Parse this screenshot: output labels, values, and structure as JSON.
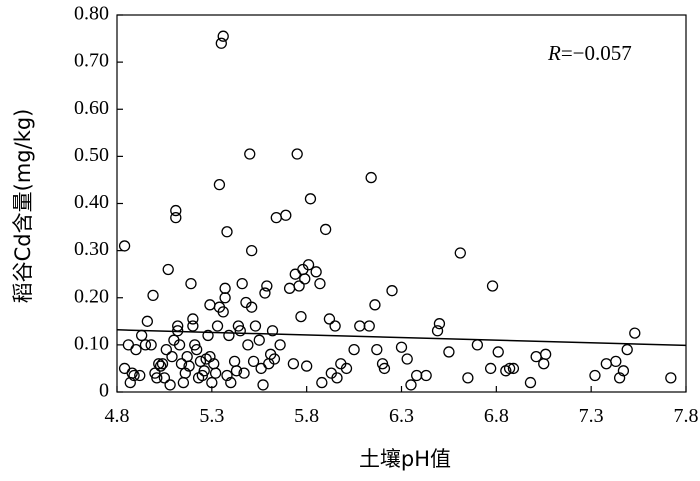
{
  "chart_data": {
    "type": "scatter",
    "xlabel": "土壤pH值",
    "ylabel": "稻谷Cd含量(mg/kg)",
    "xlim": [
      4.8,
      7.8
    ],
    "ylim": [
      0,
      0.8
    ],
    "x_ticks": [
      4.8,
      5.3,
      5.8,
      6.3,
      6.8,
      7.3,
      7.8
    ],
    "x_tick_labels": [
      "4.8",
      "5.3",
      "5.8",
      "6.3",
      "6.8",
      "7.3",
      "7.8"
    ],
    "y_ticks": [
      0,
      0.1,
      0.2,
      0.3,
      0.4,
      0.5,
      0.6,
      0.7,
      0.8
    ],
    "y_tick_labels": [
      "0",
      "0.10",
      "0.20",
      "0.30",
      "0.40",
      "0.50",
      "0.60",
      "0.70",
      "0.80"
    ],
    "grid": false,
    "annotation": {
      "prefix": "R",
      "text": "=−0.057"
    },
    "trendline": {
      "x": [
        4.8,
        7.8
      ],
      "y": [
        0.132,
        0.099
      ]
    },
    "marker": "open-circle",
    "points": [
      [
        4.84,
        0.05
      ],
      [
        4.84,
        0.31
      ],
      [
        4.86,
        0.1
      ],
      [
        4.87,
        0.02
      ],
      [
        4.88,
        0.04
      ],
      [
        4.89,
        0.035
      ],
      [
        4.9,
        0.09
      ],
      [
        4.92,
        0.035
      ],
      [
        4.93,
        0.12
      ],
      [
        4.95,
        0.1
      ],
      [
        4.96,
        0.15
      ],
      [
        4.98,
        0.1
      ],
      [
        4.99,
        0.205
      ],
      [
        5.0,
        0.04
      ],
      [
        5.01,
        0.03
      ],
      [
        5.02,
        0.06
      ],
      [
        5.03,
        0.055
      ],
      [
        5.04,
        0.06
      ],
      [
        5.05,
        0.03
      ],
      [
        5.06,
        0.09
      ],
      [
        5.07,
        0.26
      ],
      [
        5.08,
        0.015
      ],
      [
        5.09,
        0.075
      ],
      [
        5.1,
        0.11
      ],
      [
        5.11,
        0.37
      ],
      [
        5.11,
        0.385
      ],
      [
        5.12,
        0.13
      ],
      [
        5.12,
        0.14
      ],
      [
        5.13,
        0.1
      ],
      [
        5.14,
        0.06
      ],
      [
        5.15,
        0.02
      ],
      [
        5.16,
        0.04
      ],
      [
        5.17,
        0.075
      ],
      [
        5.18,
        0.055
      ],
      [
        5.19,
        0.23
      ],
      [
        5.2,
        0.14
      ],
      [
        5.2,
        0.155
      ],
      [
        5.21,
        0.1
      ],
      [
        5.22,
        0.09
      ],
      [
        5.23,
        0.03
      ],
      [
        5.24,
        0.065
      ],
      [
        5.25,
        0.035
      ],
      [
        5.26,
        0.045
      ],
      [
        5.27,
        0.07
      ],
      [
        5.28,
        0.12
      ],
      [
        5.29,
        0.075
      ],
      [
        5.29,
        0.185
      ],
      [
        5.3,
        0.02
      ],
      [
        5.31,
        0.06
      ],
      [
        5.32,
        0.04
      ],
      [
        5.33,
        0.14
      ],
      [
        5.34,
        0.44
      ],
      [
        5.34,
        0.18
      ],
      [
        5.35,
        0.74
      ],
      [
        5.36,
        0.755
      ],
      [
        5.36,
        0.17
      ],
      [
        5.37,
        0.2
      ],
      [
        5.37,
        0.22
      ],
      [
        5.38,
        0.34
      ],
      [
        5.38,
        0.035
      ],
      [
        5.39,
        0.12
      ],
      [
        5.4,
        0.02
      ],
      [
        5.42,
        0.065
      ],
      [
        5.43,
        0.045
      ],
      [
        5.44,
        0.14
      ],
      [
        5.45,
        0.13
      ],
      [
        5.46,
        0.23
      ],
      [
        5.47,
        0.04
      ],
      [
        5.48,
        0.19
      ],
      [
        5.49,
        0.1
      ],
      [
        5.5,
        0.505
      ],
      [
        5.51,
        0.3
      ],
      [
        5.51,
        0.18
      ],
      [
        5.52,
        0.065
      ],
      [
        5.53,
        0.14
      ],
      [
        5.55,
        0.11
      ],
      [
        5.56,
        0.05
      ],
      [
        5.57,
        0.015
      ],
      [
        5.58,
        0.21
      ],
      [
        5.59,
        0.225
      ],
      [
        5.6,
        0.06
      ],
      [
        5.61,
        0.08
      ],
      [
        5.62,
        0.13
      ],
      [
        5.63,
        0.07
      ],
      [
        5.64,
        0.37
      ],
      [
        5.66,
        0.1
      ],
      [
        5.69,
        0.375
      ],
      [
        5.71,
        0.22
      ],
      [
        5.73,
        0.06
      ],
      [
        5.74,
        0.25
      ],
      [
        5.75,
        0.505
      ],
      [
        5.76,
        0.225
      ],
      [
        5.77,
        0.16
      ],
      [
        5.78,
        0.26
      ],
      [
        5.79,
        0.24
      ],
      [
        5.8,
        0.055
      ],
      [
        5.81,
        0.27
      ],
      [
        5.82,
        0.41
      ],
      [
        5.85,
        0.255
      ],
      [
        5.87,
        0.23
      ],
      [
        5.88,
        0.02
      ],
      [
        5.9,
        0.345
      ],
      [
        5.92,
        0.155
      ],
      [
        5.93,
        0.04
      ],
      [
        5.95,
        0.14
      ],
      [
        5.96,
        0.03
      ],
      [
        5.98,
        0.06
      ],
      [
        6.01,
        0.05
      ],
      [
        6.05,
        0.09
      ],
      [
        6.08,
        0.14
      ],
      [
        6.13,
        0.14
      ],
      [
        6.14,
        0.455
      ],
      [
        6.16,
        0.185
      ],
      [
        6.17,
        0.09
      ],
      [
        6.2,
        0.06
      ],
      [
        6.21,
        0.05
      ],
      [
        6.25,
        0.215
      ],
      [
        6.3,
        0.095
      ],
      [
        6.33,
        0.07
      ],
      [
        6.35,
        0.015
      ],
      [
        6.38,
        0.035
      ],
      [
        6.43,
        0.035
      ],
      [
        6.49,
        0.13
      ],
      [
        6.5,
        0.145
      ],
      [
        6.55,
        0.085
      ],
      [
        6.61,
        0.295
      ],
      [
        6.65,
        0.03
      ],
      [
        6.7,
        0.1
      ],
      [
        6.77,
        0.05
      ],
      [
        6.78,
        0.225
      ],
      [
        6.81,
        0.085
      ],
      [
        6.85,
        0.045
      ],
      [
        6.87,
        0.05
      ],
      [
        6.89,
        0.05
      ],
      [
        6.98,
        0.02
      ],
      [
        7.01,
        0.075
      ],
      [
        7.05,
        0.06
      ],
      [
        7.06,
        0.08
      ],
      [
        7.32,
        0.035
      ],
      [
        7.38,
        0.06
      ],
      [
        7.43,
        0.065
      ],
      [
        7.45,
        0.03
      ],
      [
        7.47,
        0.045
      ],
      [
        7.49,
        0.09
      ],
      [
        7.53,
        0.125
      ],
      [
        7.72,
        0.03
      ]
    ]
  }
}
